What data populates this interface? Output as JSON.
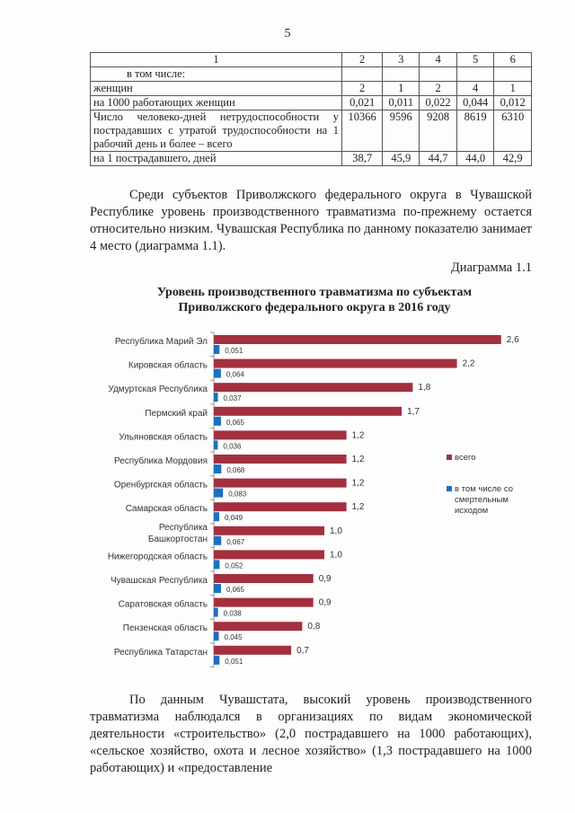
{
  "page_number": "5",
  "table": {
    "header": [
      "1",
      "2",
      "3",
      "4",
      "5",
      "6"
    ],
    "rows": [
      {
        "label": "в том числе:",
        "values": [
          "",
          "",
          "",
          "",
          ""
        ]
      },
      {
        "label": "женщин",
        "values": [
          "2",
          "1",
          "2",
          "4",
          "1"
        ]
      },
      {
        "label": "на 1000 работающих женщин",
        "values": [
          "0,021",
          "0,011",
          "0,022",
          "0,044",
          "0,012"
        ]
      },
      {
        "label": "Число человеко-дней нетрудоспособности у пострадавших с утратой трудоспособности на 1 рабочий день и более – всего",
        "values": [
          "10366",
          "9596",
          "9208",
          "8619",
          "6310"
        ]
      },
      {
        "label": "на 1 пострадавшего, дней",
        "values": [
          "38,7",
          "45,9",
          "44,7",
          "44,0",
          "42,9"
        ]
      }
    ]
  },
  "paragraph1": "Среди субъектов Приволжского федерального округа в Чувашской Республике уровень производственного травматизма по-прежнему остается относительно низким. Чувашская Республика по данному показателю занимает 4 место (диаграмма 1.1).",
  "diagram_label": "Диаграмма 1.1",
  "chart_data": {
    "type": "bar",
    "orientation": "horizontal",
    "title": "Уровень производственного травматизма по субъектам Приволжского федерального округа в 2016 году",
    "categories": [
      "Республика Марий Эл",
      "Кировская область",
      "Удмуртская Республика",
      "Пермский край",
      "Ульяновская область",
      "Республика Мордовия",
      "Оренбургская область",
      "Самарская область",
      "Республика Башкортостан",
      "Нижегородская область",
      "Чувашская Республика",
      "Саратовская область",
      "Пензенская область",
      "Республика Татарстан"
    ],
    "series": [
      {
        "name": "всего",
        "color": "#a3303f",
        "values": [
          2.6,
          2.2,
          1.8,
          1.7,
          1.2,
          1.2,
          1.2,
          1.2,
          1.0,
          1.0,
          0.9,
          0.9,
          0.8,
          0.7
        ],
        "labels": [
          "2,6",
          "2,2",
          "1,8",
          "1,7",
          "1,2",
          "1,2",
          "1,2",
          "1,2",
          "1,0",
          "1,0",
          "0,9",
          "0,9",
          "0,8",
          "0,7"
        ]
      },
      {
        "name": "в том числе со смертельным исходом",
        "color": "#1f6fbf",
        "values": [
          0.051,
          0.064,
          0.037,
          0.065,
          0.036,
          0.068,
          0.083,
          0.049,
          0.067,
          0.052,
          0.065,
          0.038,
          0.045,
          0.051
        ],
        "labels": [
          "0,051",
          "0,064",
          "0,037",
          "0,065",
          "0,036",
          "0,068",
          "0,083",
          "0,049",
          "0,067",
          "0,052",
          "0,065",
          "0,038",
          "0,045",
          "0,051"
        ]
      }
    ],
    "legend": "right",
    "grid": false
  },
  "paragraph2": "По данным Чувашстата, высокий уровень производственного травматизма наблюдался в организациях по видам экономической деятельности «строительство» (2,0 пострадавшего на 1000 работающих), «сельское хозяйство, охота и лесное хозяйство» (1,3 пострадавшего на 1000 работающих) и «предоставление"
}
